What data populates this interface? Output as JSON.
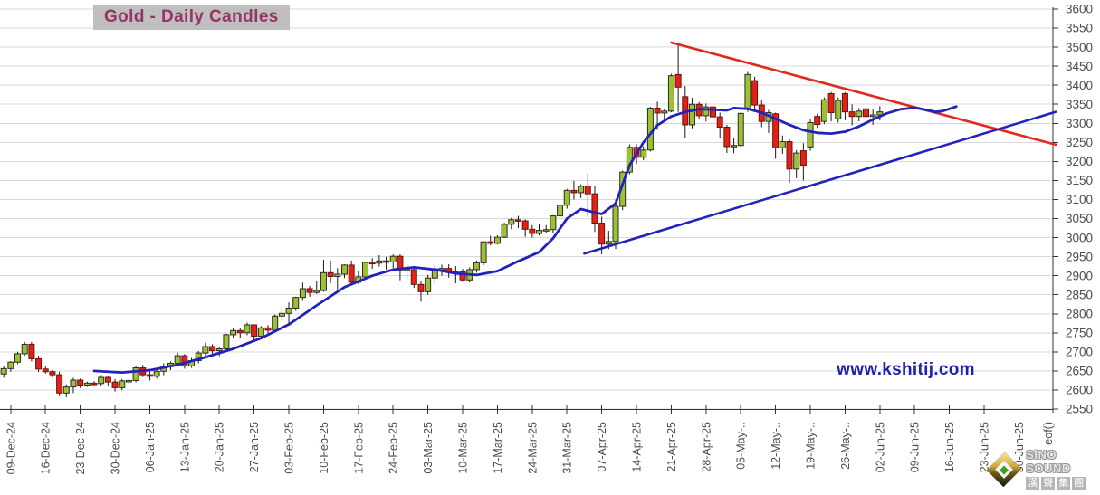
{
  "title": "Gold - Daily Candles",
  "watermark": "www.kshitij.com",
  "logo": {
    "name": "SiNO SOUND",
    "cjk": "漢聲集團"
  },
  "colors": {
    "up_fill": "#9CC32F",
    "up_border": "#2b2b2b",
    "down_fill": "#DE2317",
    "down_border": "#70100b",
    "wick": "#1a1a1a",
    "ma_line": "#2222BE",
    "trend_red": "#E02A1E",
    "trend_blue": "#2222BE",
    "grid": "#D9D9D9",
    "axis": "#333333",
    "tick_text": "#4D4D4D",
    "title_fg": "#993366",
    "title_bg": "#BFBFBF",
    "watermark": "#1F1FAF"
  },
  "chart_data": {
    "type": "candlestick",
    "title": "Gold - Daily Candles",
    "ylim": [
      2550,
      3600
    ],
    "y_tick_step": 50,
    "y_ticks": [
      3600,
      3550,
      3500,
      3450,
      3400,
      3350,
      3300,
      3250,
      3200,
      3150,
      3100,
      3050,
      3000,
      2950,
      2900,
      2850,
      2800,
      2750,
      2700,
      2650,
      2600,
      2550
    ],
    "x_ticks": [
      "09-Dec-24",
      "16-Dec-24",
      "23-Dec-24",
      "30-Dec-24",
      "06-Jan-25",
      "13-Jan-25",
      "20-Jan-25",
      "27-Jan-25",
      "03-Feb-25",
      "10-Feb-25",
      "17-Feb-25",
      "24-Feb-25",
      "03-Mar-25",
      "10-Mar-25",
      "17-Mar-25",
      "24-Mar-25",
      "31-Mar-25",
      "07-Apr-25",
      "14-Apr-25",
      "21-Apr-25",
      "28-Apr-25",
      "05-May-..",
      "12-May-..",
      "19-May-..",
      "26-May-..",
      "02-Jun-25",
      "09-Jun-25",
      "16-Jun-25",
      "23-Jun-25",
      "30-Jun-25"
    ],
    "x_end_label": "eof()",
    "grid": "horizontal-only",
    "legend": "none",
    "candles_format": [
      "date",
      "open",
      "high",
      "low",
      "close"
    ],
    "candles": [
      [
        "06-Dec-24",
        2642,
        2662,
        2632,
        2656
      ],
      [
        "09-Dec-24",
        2656,
        2676,
        2648,
        2673
      ],
      [
        "10-Dec-24",
        2673,
        2700,
        2668,
        2695
      ],
      [
        "11-Dec-24",
        2695,
        2726,
        2690,
        2720
      ],
      [
        "12-Dec-24",
        2720,
        2726,
        2675,
        2682
      ],
      [
        "13-Dec-24",
        2682,
        2690,
        2647,
        2655
      ],
      [
        "16-Dec-24",
        2655,
        2664,
        2643,
        2648
      ],
      [
        "17-Dec-24",
        2648,
        2653,
        2633,
        2640
      ],
      [
        "18-Dec-24",
        2640,
        2648,
        2584,
        2592
      ],
      [
        "19-Dec-24",
        2592,
        2615,
        2581,
        2608
      ],
      [
        "20-Dec-24",
        2608,
        2632,
        2592,
        2626
      ],
      [
        "23-Dec-24",
        2626,
        2630,
        2605,
        2613
      ],
      [
        "24-Dec-24",
        2613,
        2622,
        2608,
        2618
      ],
      [
        "25-Dec-24",
        2618,
        2623,
        2612,
        2617
      ],
      [
        "26-Dec-24",
        2617,
        2639,
        2612,
        2633
      ],
      [
        "27-Dec-24",
        2633,
        2638,
        2612,
        2621
      ],
      [
        "30-Dec-24",
        2621,
        2629,
        2596,
        2606
      ],
      [
        "31-Dec-24",
        2606,
        2629,
        2599,
        2624
      ],
      [
        "01-Jan-25",
        2624,
        2628,
        2618,
        2625
      ],
      [
        "02-Jan-25",
        2625,
        2662,
        2620,
        2658
      ],
      [
        "03-Jan-25",
        2658,
        2666,
        2634,
        2640
      ],
      [
        "06-Jan-25",
        2640,
        2650,
        2625,
        2636
      ],
      [
        "07-Jan-25",
        2636,
        2656,
        2630,
        2649
      ],
      [
        "08-Jan-25",
        2649,
        2670,
        2639,
        2662
      ],
      [
        "09-Jan-25",
        2662,
        2675,
        2652,
        2670
      ],
      [
        "10-Jan-25",
        2670,
        2698,
        2663,
        2690
      ],
      [
        "13-Jan-25",
        2690,
        2694,
        2656,
        2663
      ],
      [
        "14-Jan-25",
        2663,
        2684,
        2658,
        2677
      ],
      [
        "15-Jan-25",
        2677,
        2702,
        2670,
        2697
      ],
      [
        "16-Jan-25",
        2697,
        2724,
        2690,
        2714
      ],
      [
        "17-Jan-25",
        2714,
        2720,
        2695,
        2703
      ],
      [
        "20-Jan-25",
        2703,
        2712,
        2689,
        2708
      ],
      [
        "21-Jan-25",
        2708,
        2748,
        2702,
        2745
      ],
      [
        "22-Jan-25",
        2745,
        2763,
        2735,
        2756
      ],
      [
        "23-Jan-25",
        2756,
        2762,
        2736,
        2750
      ],
      [
        "24-Jan-25",
        2750,
        2777,
        2744,
        2771
      ],
      [
        "27-Jan-25",
        2771,
        2772,
        2730,
        2741
      ],
      [
        "28-Jan-25",
        2741,
        2768,
        2735,
        2763
      ],
      [
        "29-Jan-25",
        2763,
        2770,
        2748,
        2757
      ],
      [
        "30-Jan-25",
        2757,
        2798,
        2752,
        2794
      ],
      [
        "31-Jan-25",
        2794,
        2817,
        2782,
        2801
      ],
      [
        "03-Feb-25",
        2801,
        2830,
        2772,
        2815
      ],
      [
        "04-Feb-25",
        2815,
        2845,
        2808,
        2843
      ],
      [
        "05-Feb-25",
        2843,
        2882,
        2834,
        2866
      ],
      [
        "06-Feb-25",
        2866,
        2873,
        2845,
        2856
      ],
      [
        "07-Feb-25",
        2856,
        2886,
        2852,
        2861
      ],
      [
        "10-Feb-25",
        2861,
        2942,
        2858,
        2908
      ],
      [
        "11-Feb-25",
        2908,
        2940,
        2880,
        2898
      ],
      [
        "12-Feb-25",
        2898,
        2920,
        2864,
        2904
      ],
      [
        "13-Feb-25",
        2904,
        2930,
        2894,
        2928
      ],
      [
        "14-Feb-25",
        2928,
        2940,
        2877,
        2883
      ],
      [
        "17-Feb-25",
        2883,
        2912,
        2878,
        2897
      ],
      [
        "18-Feb-25",
        2897,
        2937,
        2890,
        2935
      ],
      [
        "19-Feb-25",
        2935,
        2946,
        2918,
        2933
      ],
      [
        "20-Feb-25",
        2933,
        2954,
        2924,
        2939
      ],
      [
        "21-Feb-25",
        2939,
        2950,
        2916,
        2936
      ],
      [
        "24-Feb-25",
        2936,
        2956,
        2920,
        2951
      ],
      [
        "25-Feb-25",
        2951,
        2956,
        2888,
        2915
      ],
      [
        "26-Feb-25",
        2915,
        2930,
        2892,
        2916
      ],
      [
        "27-Feb-25",
        2916,
        2923,
        2868,
        2877
      ],
      [
        "28-Feb-25",
        2877,
        2885,
        2832,
        2858
      ],
      [
        "03-Mar-25",
        2858,
        2902,
        2850,
        2894
      ],
      [
        "04-Mar-25",
        2894,
        2927,
        2880,
        2918
      ],
      [
        "05-Mar-25",
        2918,
        2929,
        2900,
        2919
      ],
      [
        "06-Mar-25",
        2919,
        2930,
        2895,
        2911
      ],
      [
        "07-Mar-25",
        2911,
        2925,
        2880,
        2910
      ],
      [
        "10-Mar-25",
        2910,
        2918,
        2884,
        2889
      ],
      [
        "11-Mar-25",
        2889,
        2922,
        2882,
        2916
      ],
      [
        "12-Mar-25",
        2916,
        2940,
        2908,
        2934
      ],
      [
        "13-Mar-25",
        2934,
        2990,
        2928,
        2989
      ],
      [
        "14-Mar-25",
        2989,
        3005,
        2980,
        2985
      ],
      [
        "17-Mar-25",
        2985,
        3006,
        2982,
        3001
      ],
      [
        "18-Mar-25",
        3001,
        3039,
        2999,
        3035
      ],
      [
        "19-Mar-25",
        3035,
        3052,
        3022,
        3047
      ],
      [
        "20-Mar-25",
        3047,
        3057,
        3025,
        3044
      ],
      [
        "21-Mar-25",
        3044,
        3048,
        3002,
        3022
      ],
      [
        "24-Mar-25",
        3022,
        3033,
        3000,
        3011
      ],
      [
        "25-Mar-25",
        3011,
        3036,
        3006,
        3019
      ],
      [
        "26-Mar-25",
        3019,
        3033,
        3012,
        3021
      ],
      [
        "27-Mar-25",
        3021,
        3059,
        3013,
        3057
      ],
      [
        "28-Mar-25",
        3057,
        3086,
        3045,
        3085
      ],
      [
        "31-Mar-25",
        3085,
        3128,
        3076,
        3124
      ],
      [
        "01-Apr-25",
        3124,
        3149,
        3100,
        3118
      ],
      [
        "02-Apr-25",
        3118,
        3140,
        3104,
        3135
      ],
      [
        "03-Apr-25",
        3135,
        3168,
        3054,
        3115
      ],
      [
        "04-Apr-25",
        3115,
        3136,
        3015,
        3038
      ],
      [
        "07-Apr-25",
        3038,
        3055,
        2956,
        2983
      ],
      [
        "08-Apr-25",
        2983,
        3018,
        2970,
        2990
      ],
      [
        "09-Apr-25",
        2990,
        3100,
        2970,
        3082
      ],
      [
        "10-Apr-25",
        3082,
        3176,
        3072,
        3172
      ],
      [
        "11-Apr-25",
        3172,
        3245,
        3166,
        3237
      ],
      [
        "14-Apr-25",
        3237,
        3245,
        3193,
        3211
      ],
      [
        "15-Apr-25",
        3211,
        3240,
        3203,
        3230
      ],
      [
        "16-Apr-25",
        3230,
        3343,
        3226,
        3340
      ],
      [
        "17-Apr-25",
        3340,
        3357,
        3283,
        3327
      ],
      [
        "18-Apr-25",
        3327,
        3338,
        3310,
        3332
      ],
      [
        "21-Apr-25",
        3332,
        3430,
        3329,
        3425
      ],
      [
        "22-Apr-25",
        3428,
        3513,
        3330,
        3395
      ],
      [
        "23-Apr-25",
        3370,
        3398,
        3262,
        3296
      ],
      [
        "24-Apr-25",
        3296,
        3367,
        3287,
        3350
      ],
      [
        "25-Apr-25",
        3350,
        3356,
        3312,
        3320
      ],
      [
        "28-Apr-25",
        3320,
        3352,
        3305,
        3343
      ],
      [
        "29-Apr-25",
        3343,
        3348,
        3300,
        3317
      ],
      [
        "30-Apr-25",
        3317,
        3328,
        3262,
        3290
      ],
      [
        "01-May-25",
        3290,
        3296,
        3222,
        3239
      ],
      [
        "02-May-25",
        3239,
        3263,
        3222,
        3242
      ],
      [
        "05-May-25",
        3242,
        3330,
        3238,
        3326
      ],
      [
        "06-May-25",
        3337,
        3435,
        3330,
        3428
      ],
      [
        "07-May-25",
        3412,
        3422,
        3330,
        3348
      ],
      [
        "08-May-25",
        3348,
        3360,
        3290,
        3305
      ],
      [
        "09-May-25",
        3305,
        3335,
        3275,
        3328
      ],
      [
        "12-May-25",
        3325,
        3328,
        3207,
        3236
      ],
      [
        "13-May-25",
        3236,
        3268,
        3220,
        3252
      ],
      [
        "14-May-25",
        3252,
        3258,
        3144,
        3180
      ],
      [
        "15-May-25",
        3180,
        3230,
        3156,
        3222
      ],
      [
        "16-May-25",
        3228,
        3248,
        3150,
        3190
      ],
      [
        "19-May-25",
        3238,
        3310,
        3228,
        3302
      ],
      [
        "20-May-25",
        3318,
        3325,
        3288,
        3297
      ],
      [
        "21-May-25",
        3305,
        3368,
        3298,
        3362
      ],
      [
        "22-May-25",
        3378,
        3382,
        3305,
        3328
      ],
      [
        "23-May-25",
        3312,
        3368,
        3302,
        3360
      ],
      [
        "26-May-25",
        3378,
        3382,
        3308,
        3330
      ],
      [
        "27-May-25",
        3330,
        3350,
        3295,
        3318
      ],
      [
        "28-May-25",
        3318,
        3340,
        3305,
        3332
      ],
      [
        "29-May-25",
        3338,
        3348,
        3300,
        3318
      ],
      [
        "30-May-25",
        3318,
        3336,
        3296,
        3322
      ],
      [
        "02-Jun-25",
        3322,
        3345,
        3308,
        3330
      ]
    ],
    "ma_line_points_day_price": [
      [
        12,
        2650
      ],
      [
        16,
        2646
      ],
      [
        20,
        2652
      ],
      [
        24,
        2666
      ],
      [
        28,
        2686
      ],
      [
        32,
        2708
      ],
      [
        36,
        2736
      ],
      [
        40,
        2772
      ],
      [
        44,
        2822
      ],
      [
        48,
        2870
      ],
      [
        52,
        2900
      ],
      [
        55,
        2916
      ],
      [
        58,
        2922
      ],
      [
        61,
        2916
      ],
      [
        64,
        2906
      ],
      [
        67,
        2902
      ],
      [
        70,
        2912
      ],
      [
        73,
        2938
      ],
      [
        76,
        2962
      ],
      [
        78,
        2998
      ],
      [
        80,
        3050
      ],
      [
        82,
        3075
      ],
      [
        84,
        3066
      ],
      [
        85,
        3062
      ],
      [
        87,
        3090
      ],
      [
        89,
        3190
      ],
      [
        91,
        3250
      ],
      [
        93,
        3295
      ],
      [
        95,
        3318
      ],
      [
        97,
        3330
      ],
      [
        99,
        3337
      ],
      [
        101,
        3336
      ],
      [
        103,
        3334
      ],
      [
        104,
        3340
      ],
      [
        106,
        3338
      ],
      [
        108,
        3328
      ],
      [
        110,
        3312
      ],
      [
        112,
        3296
      ],
      [
        114,
        3282
      ],
      [
        116,
        3275
      ],
      [
        118,
        3273
      ],
      [
        120,
        3278
      ],
      [
        122,
        3292
      ],
      [
        124,
        3310
      ],
      [
        126,
        3326
      ],
      [
        128,
        3337
      ],
      [
        130,
        3341
      ],
      [
        132,
        3334
      ],
      [
        133,
        3330
      ],
      [
        134,
        3332
      ],
      [
        135,
        3338
      ],
      [
        136,
        3344
      ]
    ],
    "trendlines": [
      {
        "name": "descending-resistance",
        "color_key": "trend_red",
        "points_day_price": [
          [
            95,
            3512
          ],
          [
            150.3,
            3244
          ]
        ]
      },
      {
        "name": "ascending-support",
        "color_key": "trend_blue",
        "points_day_price": [
          [
            82.5,
            2958
          ],
          [
            150.3,
            3330
          ]
        ]
      }
    ]
  }
}
